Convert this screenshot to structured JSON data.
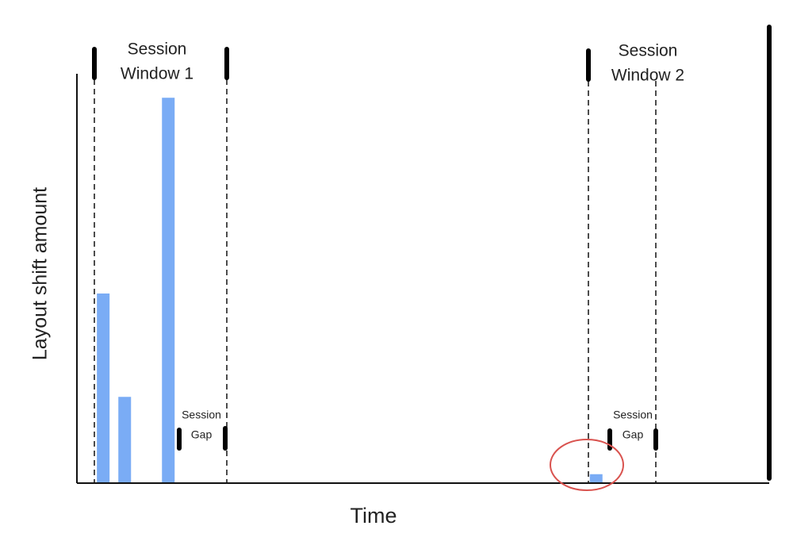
{
  "chart_data": {
    "type": "bar",
    "x_label": "Time",
    "y_label": "Layout shift amount",
    "x": [
      3.8,
      6.9,
      13.2,
      75
    ],
    "values": [
      46.4,
      21,
      94.5,
      2
    ],
    "color": "#7aacf5",
    "xlim": [
      0,
      100
    ],
    "ylim": [
      0,
      100
    ],
    "annotations": [
      [
        "Session",
        "Window 1"
      ],
      [
        "Session",
        "Window 2"
      ],
      [
        "Session",
        "Gap"
      ],
      [
        "Session",
        "Gap"
      ]
    ]
  }
}
